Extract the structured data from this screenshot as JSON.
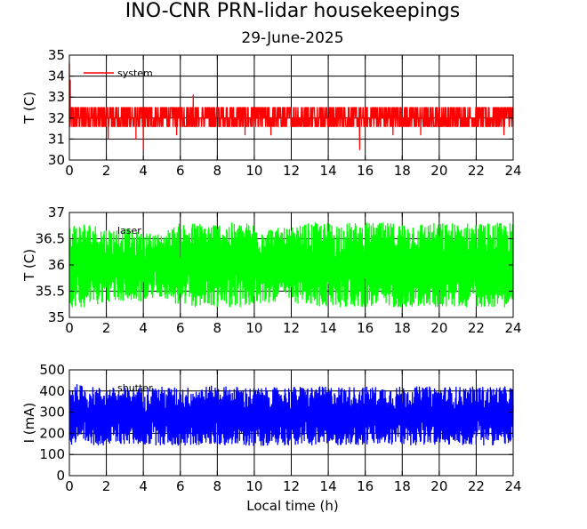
{
  "title": "INO-CNR PRN-lidar housekeepings",
  "subtitle": "29-June-2025",
  "xlabel": "Local time (h)",
  "chart_data": [
    {
      "type": "line",
      "ylabel": "T (C)",
      "xlim": [
        0,
        24
      ],
      "ylim": [
        30,
        35
      ],
      "xticks": [
        0,
        2,
        4,
        6,
        8,
        10,
        12,
        14,
        16,
        18,
        20,
        22,
        24
      ],
      "yticks": [
        30,
        31,
        32,
        33,
        34,
        35
      ],
      "grid": true,
      "legend": "top-left",
      "series": [
        {
          "name": "system",
          "color": "#ff0000",
          "levels": [
            31.6,
            32.0,
            32.5
          ],
          "x": [
            0.0,
            0.05,
            0.1,
            0.15,
            0.25,
            0.5,
            0.75,
            1.0,
            1.5,
            2.0,
            2.1,
            2.5,
            3.0,
            3.5,
            3.6,
            3.8,
            4.0,
            4.5,
            5.0,
            5.5,
            5.8,
            6.0,
            6.5,
            6.7,
            7.0,
            7.5,
            8.0,
            8.5,
            9.0,
            9.5,
            10.0,
            10.5,
            10.9,
            11.0,
            11.5,
            12.0,
            12.5,
            13.0,
            13.5,
            14.0,
            14.5,
            15.0,
            15.5,
            15.7,
            16.0,
            16.5,
            17.0,
            17.5,
            18.0,
            18.5,
            19.0,
            19.5,
            20.0,
            20.5,
            21.0,
            21.5,
            22.0,
            22.5,
            23.0,
            23.5,
            23.7,
            24.0
          ],
          "y": [
            34.6,
            33.8,
            32.6,
            32.5,
            32.0,
            32.5,
            32.0,
            32.5,
            32.0,
            31.6,
            31.0,
            32.0,
            32.5,
            32.0,
            31.0,
            32.0,
            30.5,
            32.0,
            32.5,
            32.0,
            31.2,
            32.0,
            32.5,
            33.1,
            32.0,
            32.5,
            32.0,
            32.5,
            32.0,
            31.2,
            32.5,
            32.0,
            31.2,
            32.5,
            32.0,
            32.5,
            32.0,
            32.5,
            32.0,
            32.5,
            32.0,
            32.5,
            32.0,
            30.5,
            32.0,
            32.5,
            32.0,
            31.2,
            32.5,
            32.0,
            31.2,
            32.5,
            32.0,
            32.5,
            32.0,
            32.5,
            32.0,
            32.5,
            32.0,
            31.2,
            32.0,
            32.5
          ]
        }
      ]
    },
    {
      "type": "line",
      "ylabel": "T (C)",
      "xlim": [
        0,
        24
      ],
      "ylim": [
        35,
        37
      ],
      "xticks": [
        0,
        2,
        4,
        6,
        8,
        10,
        12,
        14,
        16,
        18,
        20,
        22,
        24
      ],
      "yticks": [
        35,
        35.5,
        36,
        36.5,
        37
      ],
      "grid": true,
      "legend": "top-left",
      "series": [
        {
          "name": "laser",
          "color": "#00ff00",
          "x": [
            0,
            1,
            2,
            3,
            4,
            5,
            6,
            7,
            8,
            9,
            10,
            11,
            12,
            13,
            14,
            15,
            16,
            17,
            18,
            19,
            20,
            21,
            22,
            23,
            24
          ],
          "y_max": [
            36.8,
            36.8,
            36.7,
            36.7,
            36.6,
            36.6,
            36.8,
            36.8,
            36.8,
            36.8,
            36.8,
            36.7,
            36.7,
            36.8,
            36.8,
            36.8,
            36.8,
            36.8,
            36.8,
            36.8,
            36.8,
            36.8,
            36.8,
            36.8,
            36.8
          ],
          "y_min": [
            35.2,
            35.2,
            35.3,
            35.3,
            35.3,
            35.4,
            35.2,
            35.2,
            35.2,
            35.2,
            35.2,
            35.3,
            35.3,
            35.2,
            35.2,
            35.2,
            35.2,
            35.2,
            35.2,
            35.2,
            35.2,
            35.2,
            35.2,
            35.2,
            35.2
          ]
        }
      ]
    },
    {
      "type": "line",
      "ylabel": "I (mA)",
      "xlim": [
        0,
        24
      ],
      "ylim": [
        0,
        500
      ],
      "xticks": [
        0,
        2,
        4,
        6,
        8,
        10,
        12,
        14,
        16,
        18,
        20,
        22,
        24
      ],
      "yticks": [
        0,
        100,
        200,
        300,
        400,
        500
      ],
      "grid": true,
      "legend": "top-left",
      "series": [
        {
          "name": "shutter",
          "color": "#0000ff",
          "x": [
            0,
            1,
            2,
            3,
            4,
            5,
            6,
            7,
            8,
            9,
            10,
            11,
            12,
            13,
            14,
            15,
            16,
            17,
            18,
            19,
            20,
            21,
            22,
            23,
            24
          ],
          "y_max": [
            440,
            420,
            415,
            415,
            420,
            420,
            415,
            420,
            425,
            420,
            415,
            415,
            420,
            420,
            420,
            420,
            420,
            420,
            420,
            420,
            420,
            420,
            420,
            420,
            420
          ],
          "y_min": [
            140,
            145,
            145,
            150,
            145,
            145,
            140,
            145,
            145,
            145,
            140,
            145,
            145,
            145,
            145,
            145,
            145,
            145,
            145,
            145,
            145,
            145,
            145,
            145,
            150
          ]
        }
      ]
    }
  ]
}
